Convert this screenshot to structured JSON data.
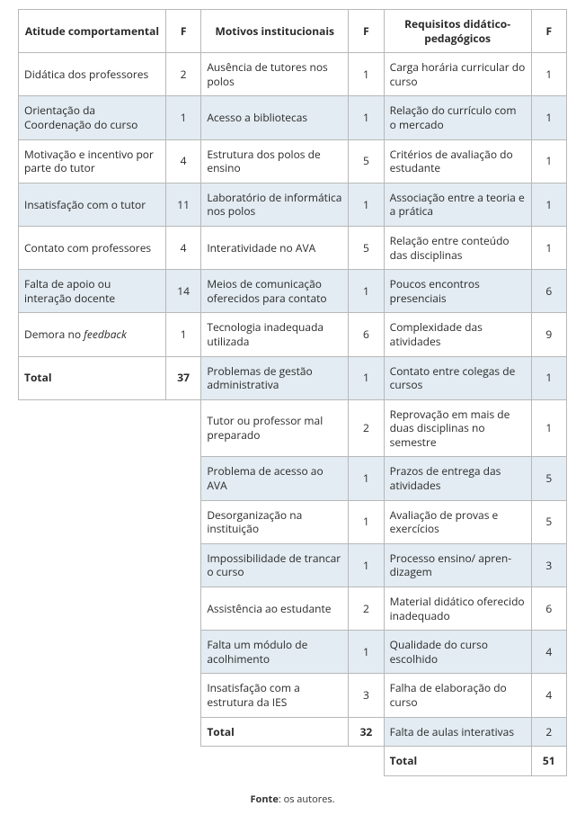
{
  "headers": {
    "col1": "Atitude comportamental",
    "col2": "F",
    "col3": "Motivos institucionais",
    "col4": "F",
    "col5": "Requisitos didático-pedagógicos",
    "col6": "F"
  },
  "colA": [
    {
      "label": "Didática dos professores",
      "f": "2"
    },
    {
      "label": "Orientação da Coordenação do curso",
      "f": "1"
    },
    {
      "label": "Motivação e incentivo por parte do tutor",
      "f": "4"
    },
    {
      "label": "Insatisfação com o tutor",
      "f": "11"
    },
    {
      "label": "Contato com professores",
      "f": "4"
    },
    {
      "label": "Falta de apoio ou interação docente",
      "f": "14"
    },
    {
      "label": "Demora no feedback",
      "f": "1"
    }
  ],
  "colA_total": {
    "label": "Total",
    "f": "37"
  },
  "colB": [
    {
      "label": "Ausência de tutores nos polos",
      "f": "1"
    },
    {
      "label": "Acesso a bibliotecas",
      "f": "1"
    },
    {
      "label": "Estrutura dos polos de ensino",
      "f": "5"
    },
    {
      "label": "Laboratório de informática nos polos",
      "f": "1"
    },
    {
      "label": "Interatividade no AVA",
      "f": "5"
    },
    {
      "label": "Meios de comunicação oferecidos para contato",
      "f": "1"
    },
    {
      "label": "Tecnologia inadequada utilizada",
      "f": "6"
    },
    {
      "label": "Problemas de gestão administrativa",
      "f": "1"
    },
    {
      "label": "Tutor ou professor mal preparado",
      "f": "2"
    },
    {
      "label": "Problema de acesso ao AVA",
      "f": "1"
    },
    {
      "label": "Desorganização na instituição",
      "f": "1"
    },
    {
      "label": "Impossibilidade de trancar o curso",
      "f": "1"
    },
    {
      "label": "Assistência ao estudante",
      "f": "2"
    },
    {
      "label": "Falta um módulo de acolhimento",
      "f": "1"
    },
    {
      "label": "Insatisfação com a estrutura da IES",
      "f": "3"
    }
  ],
  "colB_total": {
    "label": "Total",
    "f": "32"
  },
  "colC": [
    {
      "label": "Carga horária curricular do curso",
      "f": "1"
    },
    {
      "label": "Relação do currículo com o mercado",
      "f": "1"
    },
    {
      "label": "Critérios de avaliação do estudante",
      "f": "1"
    },
    {
      "label": "Associação entre a teoria e a prática",
      "f": "1"
    },
    {
      "label": "Relação entre conteúdo das disciplinas",
      "f": "1"
    },
    {
      "label": "Poucos encontros presenciais",
      "f": "6"
    },
    {
      "label": "Complexidade das atividades",
      "f": "9"
    },
    {
      "label": "Contato entre colegas de cursos",
      "f": "1"
    },
    {
      "label": "Reprovação em mais de duas disciplinas no semestre",
      "f": "1"
    },
    {
      "label": "Prazos de entrega das atividades",
      "f": "5"
    },
    {
      "label": "Avaliação de provas e exercícios",
      "f": "5"
    },
    {
      "label": "Processo ensino/ apren-dizagem",
      "f": "3"
    },
    {
      "label": "Material didático oferecido inadequado",
      "f": "6"
    },
    {
      "label": "Qualidade do curso escolhido",
      "f": "4"
    },
    {
      "label": "Falha de elaboração do curso",
      "f": "4"
    },
    {
      "label": "Falta de aulas interativas",
      "f": "2"
    }
  ],
  "colC_total": {
    "label": "Total",
    "f": "51"
  },
  "source": {
    "label": "Fonte",
    "text": ": os autores."
  },
  "style": {
    "alt_row_bg": "#e3ecf2",
    "border_color": "#b8b8b8",
    "font_size_cell": 12,
    "font_size_source": 11,
    "background": "#ffffff"
  }
}
